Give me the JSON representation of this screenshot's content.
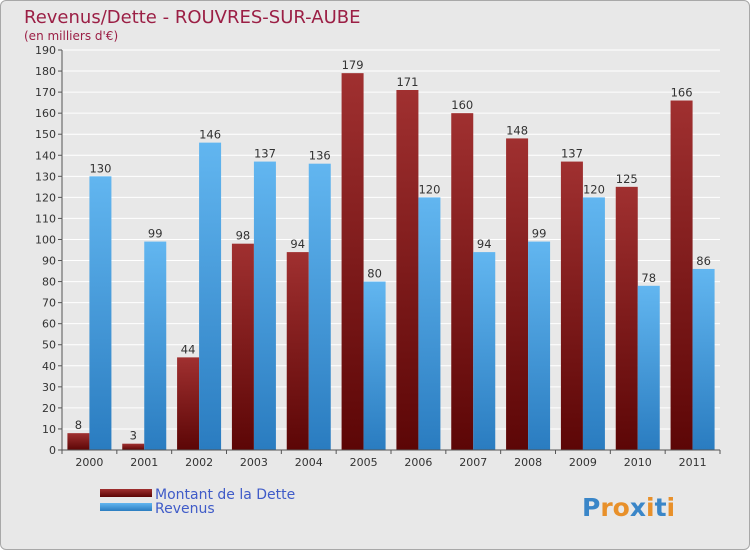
{
  "chart_data": {
    "type": "bar",
    "title": "Revenus/Dette - ROUVRES-SUR-AUBE",
    "subtitle": "(en milliers d'€)",
    "categories": [
      "2000",
      "2001",
      "2002",
      "2003",
      "2004",
      "2005",
      "2006",
      "2007",
      "2008",
      "2009",
      "2010",
      "2011"
    ],
    "series": [
      {
        "name": "Montant de la Dette",
        "color": "#7a1414",
        "values": [
          8,
          3,
          44,
          98,
          94,
          179,
          171,
          160,
          148,
          137,
          125,
          166
        ]
      },
      {
        "name": "Revenus",
        "color": "#3d9de3",
        "values": [
          130,
          99,
          146,
          137,
          136,
          80,
          120,
          94,
          99,
          120,
          78,
          86
        ]
      }
    ],
    "ylim": [
      0,
      190
    ],
    "ytick_step": 10,
    "grid": true,
    "legend_position": "bottom-left"
  },
  "logo": {
    "text": "Proxiti",
    "letter_colors": [
      "#3a86c8",
      "#e8902a",
      "#e8902a",
      "#3a86c8",
      "#e8902a",
      "#3a86c8",
      "#e8902a"
    ]
  }
}
